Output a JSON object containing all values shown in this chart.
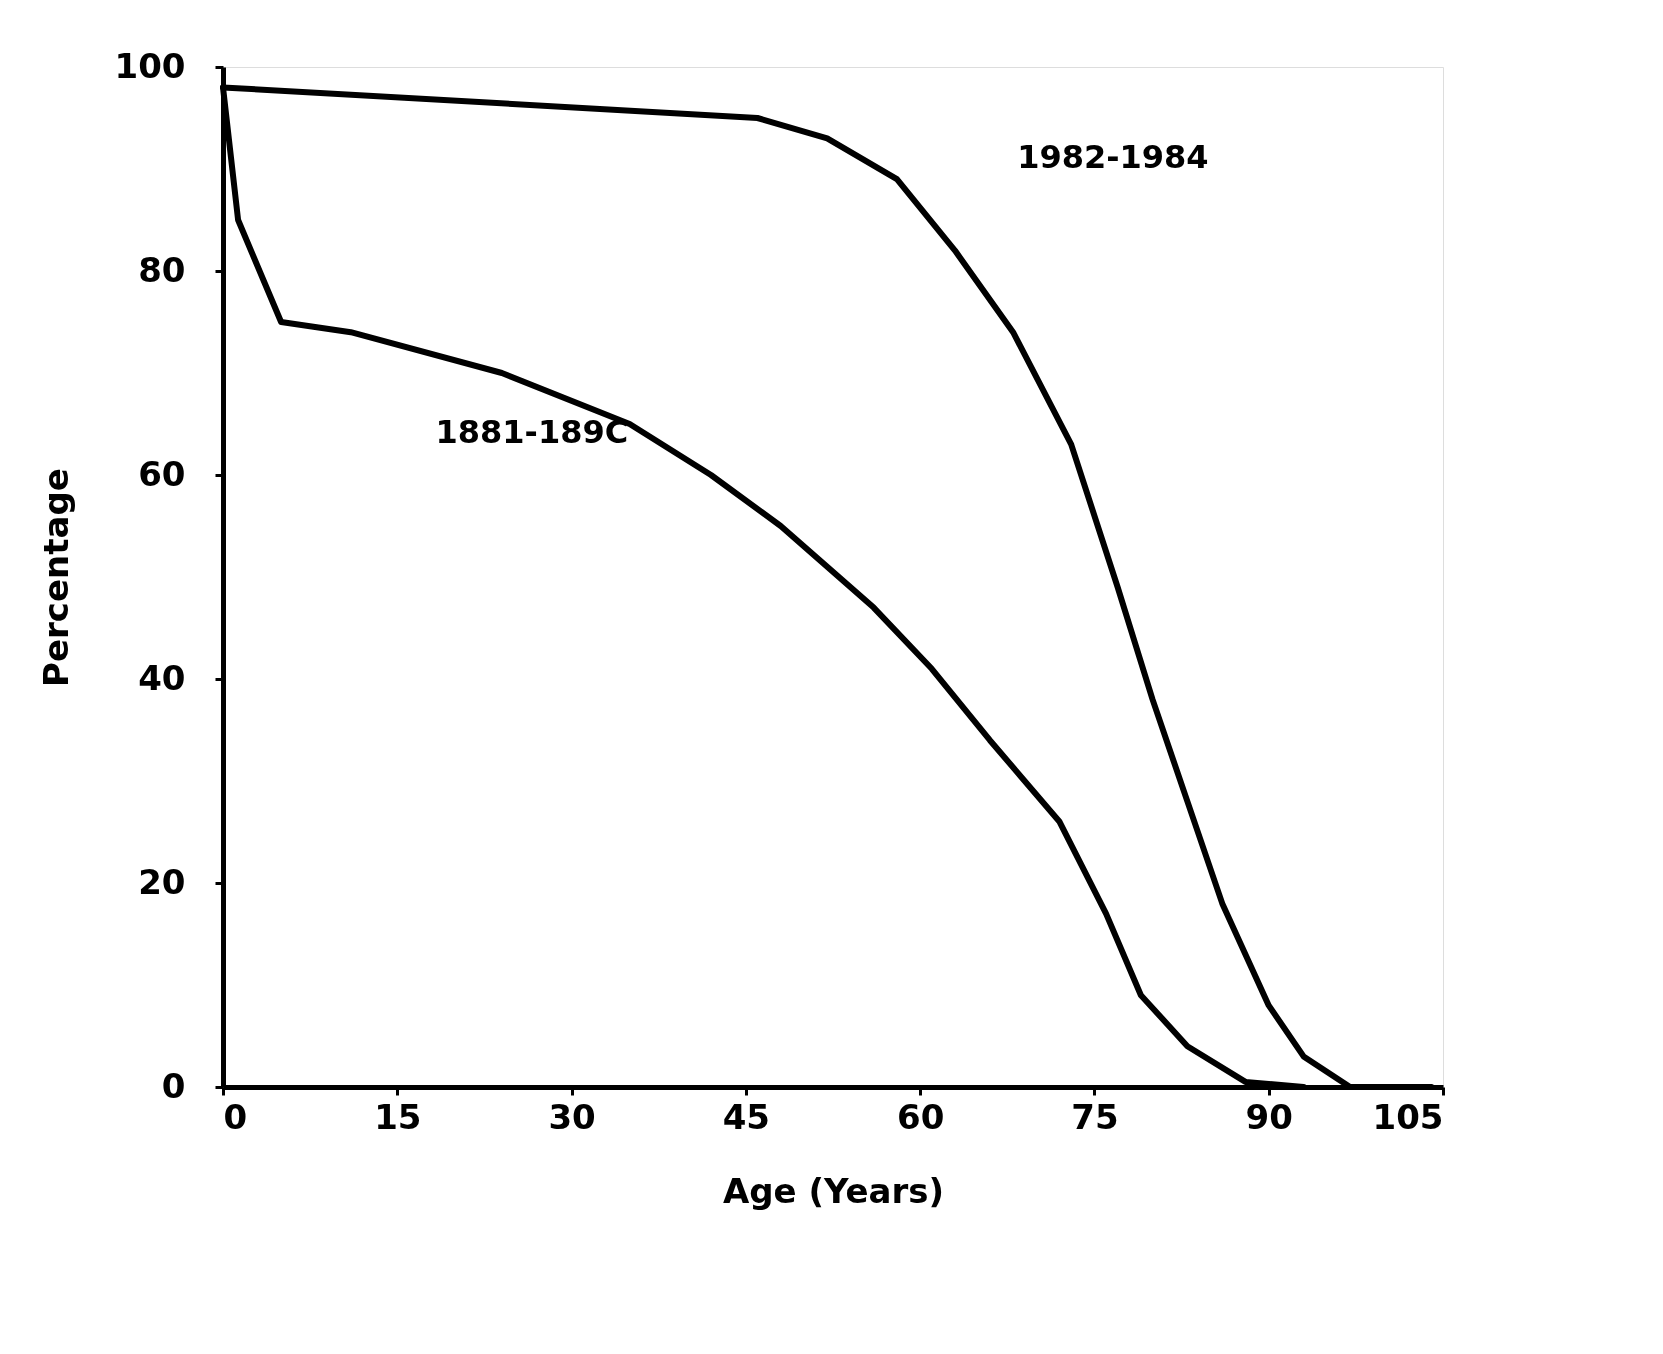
{
  "chart_data": {
    "type": "line",
    "xlabel": "Age (Years)",
    "ylabel": "Percentage",
    "xlim": [
      0,
      105
    ],
    "ylim": [
      0,
      100
    ],
    "xticks": [
      0,
      15,
      30,
      45,
      60,
      75,
      90,
      105
    ],
    "yticks": [
      0,
      20,
      40,
      60,
      80,
      100
    ],
    "grid": false,
    "marker": "none",
    "line_style": "solid",
    "series": [
      {
        "name": "1982-1984",
        "color": "#000000",
        "x": [
          0,
          46,
          52,
          58,
          63,
          68,
          73,
          77,
          80,
          83,
          86,
          90,
          93,
          97,
          104
        ],
        "values": [
          98,
          95,
          93,
          89,
          82,
          74,
          63,
          49,
          38,
          28,
          18,
          8,
          3,
          0,
          0
        ]
      },
      {
        "name": "1881-189C",
        "color": "#000000",
        "x": [
          0,
          1.3,
          5,
          11,
          24,
          35,
          42,
          48,
          56,
          61,
          66,
          72,
          76,
          79,
          83,
          88,
          93
        ],
        "values": [
          98,
          85,
          75,
          74,
          70,
          65,
          60,
          55,
          47,
          41,
          34,
          26,
          17,
          9,
          4,
          0.5,
          0
        ]
      }
    ]
  }
}
